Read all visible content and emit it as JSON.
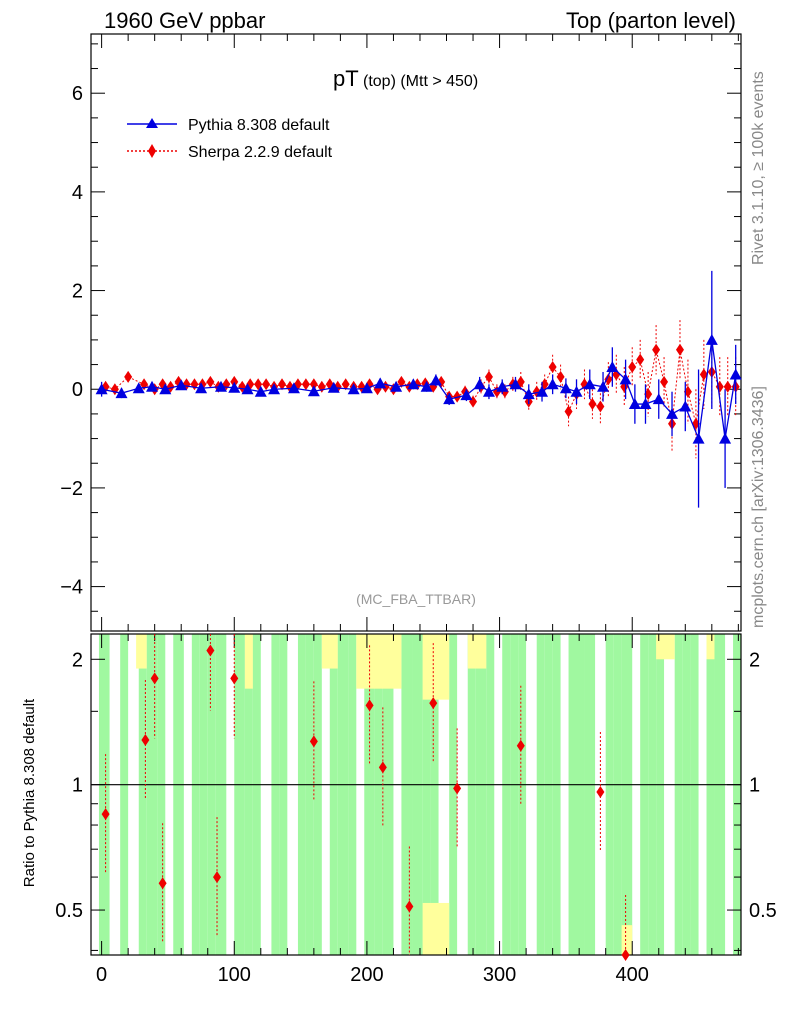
{
  "header": {
    "left": "1960 GeV ppbar",
    "right": "Top (parton level)"
  },
  "side_labels": {
    "rivet": "Rivet 3.1.10, ≥ 100k events",
    "mcplots": "mcplots.cern.ch [arXiv:1306.3436]"
  },
  "colors": {
    "pythia": "#0000e0",
    "sherpa": "#ee0000",
    "band_green": "#a0f8a0",
    "band_yellow": "#ffff9c"
  },
  "chart_data": [
    {
      "type": "line",
      "title": "pT (top) (Mtt > 450)",
      "title_main": "pT",
      "title_sub": "(top) (Mtt > 450)",
      "watermark": "(MC_FBA_TTBAR)",
      "xlim": [
        -8,
        482
      ],
      "ylim": [
        -4.9,
        7.2
      ],
      "y_ticks": [
        -4,
        -2,
        0,
        2,
        4,
        6
      ],
      "y_tick_labels": [
        "−4",
        "−2",
        "0",
        "2",
        "4",
        "6"
      ],
      "legend_position": "top-left",
      "series": [
        {
          "name": "Pythia 8.308 default",
          "marker": "triangle",
          "line": "solid",
          "x": [
            0,
            15,
            28,
            38,
            48,
            60,
            75,
            90,
            100,
            110,
            120,
            130,
            145,
            160,
            175,
            190,
            200,
            210,
            222,
            235,
            245,
            252,
            262,
            275,
            285,
            292,
            302,
            312,
            322,
            332,
            340,
            350,
            358,
            368,
            378,
            385,
            395,
            402,
            410,
            420,
            430,
            440,
            450,
            460,
            470,
            478
          ],
          "y": [
            0.0,
            -0.08,
            0.02,
            0.05,
            0.0,
            0.08,
            0.02,
            0.05,
            0.03,
            0.0,
            -0.05,
            0.0,
            0.02,
            -0.04,
            0.03,
            0.0,
            0.02,
            0.12,
            0.05,
            0.1,
            0.05,
            0.18,
            -0.2,
            -0.12,
            0.1,
            -0.05,
            0.05,
            0.1,
            -0.1,
            -0.05,
            0.1,
            0.02,
            -0.05,
            0.1,
            0.05,
            0.45,
            0.2,
            -0.3,
            -0.3,
            -0.2,
            -0.5,
            -0.35,
            -1.0,
            1.0,
            -1.0,
            0.3
          ],
          "err": [
            0.15,
            0.1,
            0.08,
            0.08,
            0.08,
            0.08,
            0.08,
            0.08,
            0.08,
            0.08,
            0.08,
            0.08,
            0.08,
            0.08,
            0.08,
            0.08,
            0.08,
            0.1,
            0.08,
            0.1,
            0.1,
            0.12,
            0.12,
            0.12,
            0.15,
            0.15,
            0.15,
            0.15,
            0.2,
            0.2,
            0.2,
            0.2,
            0.25,
            0.3,
            0.3,
            0.4,
            0.4,
            0.4,
            0.4,
            0.4,
            0.45,
            0.5,
            1.4,
            1.4,
            1.0,
            0.6
          ]
        },
        {
          "name": "Sherpa 2.2.9 default",
          "marker": "diamond",
          "line": "dotted",
          "x": [
            3,
            10,
            20,
            32,
            40,
            46,
            52,
            58,
            64,
            70,
            76,
            82,
            88,
            94,
            100,
            106,
            112,
            118,
            124,
            130,
            136,
            142,
            148,
            154,
            160,
            166,
            172,
            178,
            184,
            190,
            196,
            202,
            208,
            214,
            220,
            226,
            232,
            238,
            244,
            250,
            256,
            262,
            268,
            274,
            280,
            286,
            292,
            298,
            304,
            310,
            316,
            322,
            328,
            334,
            340,
            346,
            352,
            358,
            364,
            370,
            376,
            382,
            388,
            394,
            400,
            406,
            412,
            418,
            424,
            430,
            436,
            442,
            448,
            454,
            460,
            466,
            472,
            478
          ],
          "y": [
            0.05,
            0.0,
            0.25,
            0.1,
            0.0,
            0.1,
            0.05,
            0.15,
            0.1,
            0.1,
            0.1,
            0.15,
            0.05,
            0.1,
            0.15,
            0.05,
            0.1,
            0.1,
            0.1,
            0.05,
            0.1,
            0.05,
            0.1,
            0.1,
            0.1,
            0.05,
            0.1,
            0.05,
            0.1,
            0.05,
            0.05,
            0.1,
            0.0,
            0.05,
            0.0,
            0.15,
            0.05,
            0.1,
            0.12,
            0.05,
            0.15,
            -0.15,
            -0.15,
            -0.05,
            -0.25,
            0.05,
            0.25,
            -0.05,
            -0.05,
            0.1,
            0.15,
            -0.25,
            -0.05,
            0.1,
            0.45,
            0.25,
            -0.45,
            -0.1,
            0.1,
            -0.3,
            -0.35,
            0.2,
            0.3,
            0.05,
            0.45,
            0.6,
            -0.1,
            0.8,
            0.15,
            -0.7,
            0.8,
            -0.05,
            -0.7,
            0.3,
            0.35,
            0.05,
            0.05,
            0.05
          ],
          "err": [
            0.1,
            0.08,
            0.08,
            0.08,
            0.08,
            0.08,
            0.08,
            0.08,
            0.08,
            0.08,
            0.08,
            0.08,
            0.08,
            0.08,
            0.08,
            0.08,
            0.08,
            0.08,
            0.08,
            0.08,
            0.08,
            0.08,
            0.08,
            0.08,
            0.08,
            0.08,
            0.08,
            0.08,
            0.08,
            0.08,
            0.08,
            0.08,
            0.08,
            0.08,
            0.08,
            0.08,
            0.08,
            0.08,
            0.08,
            0.08,
            0.1,
            0.1,
            0.1,
            0.12,
            0.12,
            0.15,
            0.15,
            0.15,
            0.15,
            0.15,
            0.2,
            0.2,
            0.2,
            0.2,
            0.25,
            0.25,
            0.3,
            0.3,
            0.3,
            0.3,
            0.35,
            0.35,
            0.4,
            0.4,
            0.4,
            0.4,
            0.45,
            0.5,
            0.5,
            0.55,
            0.6,
            0.65,
            0.7,
            0.7,
            0.7,
            0.6,
            0.6,
            0.6
          ]
        }
      ]
    },
    {
      "type": "line",
      "ylabel": "Ratio to Pythia 8.308 default",
      "xlim": [
        -8,
        482
      ],
      "ylim": [
        0.39,
        2.3
      ],
      "scale": "log",
      "x_ticks": [
        0,
        100,
        200,
        300,
        400
      ],
      "x_tick_labels": [
        "0",
        "100",
        "200",
        "300",
        "400"
      ],
      "y_ticks": [
        0.5,
        1,
        2
      ],
      "y_tick_labels": [
        "0.5",
        "1",
        "2"
      ],
      "reference_line": 1,
      "band_edges": [
        -2,
        6,
        14,
        20,
        28,
        34,
        42,
        48,
        54,
        62,
        68,
        74,
        80,
        86,
        94,
        100,
        108,
        114,
        120,
        128,
        134,
        140,
        148,
        154,
        160,
        166,
        172,
        178,
        186,
        192,
        198,
        206,
        212,
        220,
        226,
        234,
        242,
        248,
        254,
        262,
        268,
        276,
        282,
        290,
        296,
        302,
        308,
        314,
        320,
        328,
        334,
        340,
        346,
        352,
        358,
        364,
        372,
        380,
        386,
        392,
        400,
        406,
        412,
        418,
        424,
        432,
        438,
        444,
        450,
        456,
        462,
        470,
        476,
        482
      ],
      "band_green_lo": [
        0.39,
        0.39,
        0.39,
        0.39,
        0.39,
        0.39,
        0.39,
        0.39,
        0.39,
        0.39,
        0.39,
        0.39,
        0.39,
        0.39,
        0.39,
        0.39,
        0.39,
        0.39,
        0.39,
        0.39,
        0.39,
        0.39,
        0.39,
        0.39,
        0.39,
        0.39,
        0.39,
        0.39,
        0.39,
        0.39,
        0.39,
        0.39,
        0.39,
        0.39,
        0.39,
        0.39,
        0.39,
        0.39,
        0.39,
        0.39,
        0.39,
        0.39,
        0.39,
        0.39,
        0.39,
        0.39,
        0.39,
        0.39,
        0.39,
        0.39,
        0.39,
        0.39,
        0.39,
        0.39,
        0.39,
        0.39,
        0.39,
        0.39,
        0.39,
        0.39,
        0.39,
        0.39,
        0.39,
        0.39,
        0.39,
        0.39,
        0.39,
        0.39,
        0.39,
        0.39,
        0.39,
        0.39,
        0.39
      ],
      "band_green_hi": [
        2.3,
        2.3,
        2.3,
        2.3,
        2.3,
        2.3,
        2.3,
        2.3,
        2.3,
        2.3,
        2.3,
        2.3,
        2.3,
        2.3,
        2.3,
        2.3,
        2.3,
        2.3,
        2.3,
        2.3,
        2.3,
        2.3,
        2.3,
        2.3,
        2.3,
        2.3,
        2.3,
        2.3,
        2.3,
        2.3,
        2.3,
        2.3,
        2.3,
        2.3,
        2.3,
        2.3,
        2.3,
        2.3,
        2.3,
        2.3,
        2.3,
        2.3,
        2.3,
        2.3,
        2.3,
        2.3,
        2.3,
        2.3,
        2.3,
        2.3,
        2.3,
        2.3,
        2.3,
        2.3,
        2.3,
        2.3,
        2.3,
        2.3,
        2.3,
        2.3,
        2.3,
        2.3,
        2.3,
        2.3,
        2.3,
        2.3,
        2.3,
        2.3,
        2.3,
        2.3,
        2.3,
        2.3,
        2.3
      ],
      "band_gaps": [
        [
          6,
          14
        ],
        [
          20,
          28
        ],
        [
          48,
          54
        ],
        [
          62,
          68
        ],
        [
          94,
          100
        ],
        [
          120,
          128
        ],
        [
          140,
          148
        ],
        [
          166,
          172
        ],
        [
          192,
          198
        ],
        [
          220,
          226
        ],
        [
          254,
          262
        ],
        [
          268,
          276
        ],
        [
          296,
          302
        ],
        [
          320,
          328
        ],
        [
          346,
          352
        ],
        [
          372,
          380
        ],
        [
          400,
          406
        ],
        [
          424,
          432
        ],
        [
          450,
          456
        ],
        [
          470,
          476
        ]
      ],
      "band_yellow_regions": [
        [
          26,
          34,
          1.9,
          2.3
        ],
        [
          108,
          114,
          1.7,
          2.3
        ],
        [
          166,
          178,
          1.9,
          2.3
        ],
        [
          192,
          226,
          1.7,
          2.3
        ],
        [
          242,
          262,
          1.6,
          2.3
        ],
        [
          242,
          262,
          0.39,
          0.52
        ],
        [
          276,
          290,
          1.9,
          2.3
        ],
        [
          392,
          400,
          0.39,
          0.46
        ],
        [
          418,
          432,
          2.0,
          2.3
        ],
        [
          456,
          462,
          2.0,
          2.3
        ]
      ],
      "series": [
        {
          "name": "Sherpa 2.2.9 default",
          "x": [
            3,
            33,
            40,
            46,
            82,
            87,
            100,
            160,
            202,
            212,
            232,
            250,
            268,
            316,
            376,
            395
          ],
          "y": [
            0.85,
            1.28,
            1.8,
            0.58,
            2.1,
            0.6,
            1.8,
            1.27,
            1.55,
            1.1,
            0.51,
            1.57,
            0.98,
            1.24,
            0.96,
            0.375
          ]
        }
      ]
    }
  ]
}
